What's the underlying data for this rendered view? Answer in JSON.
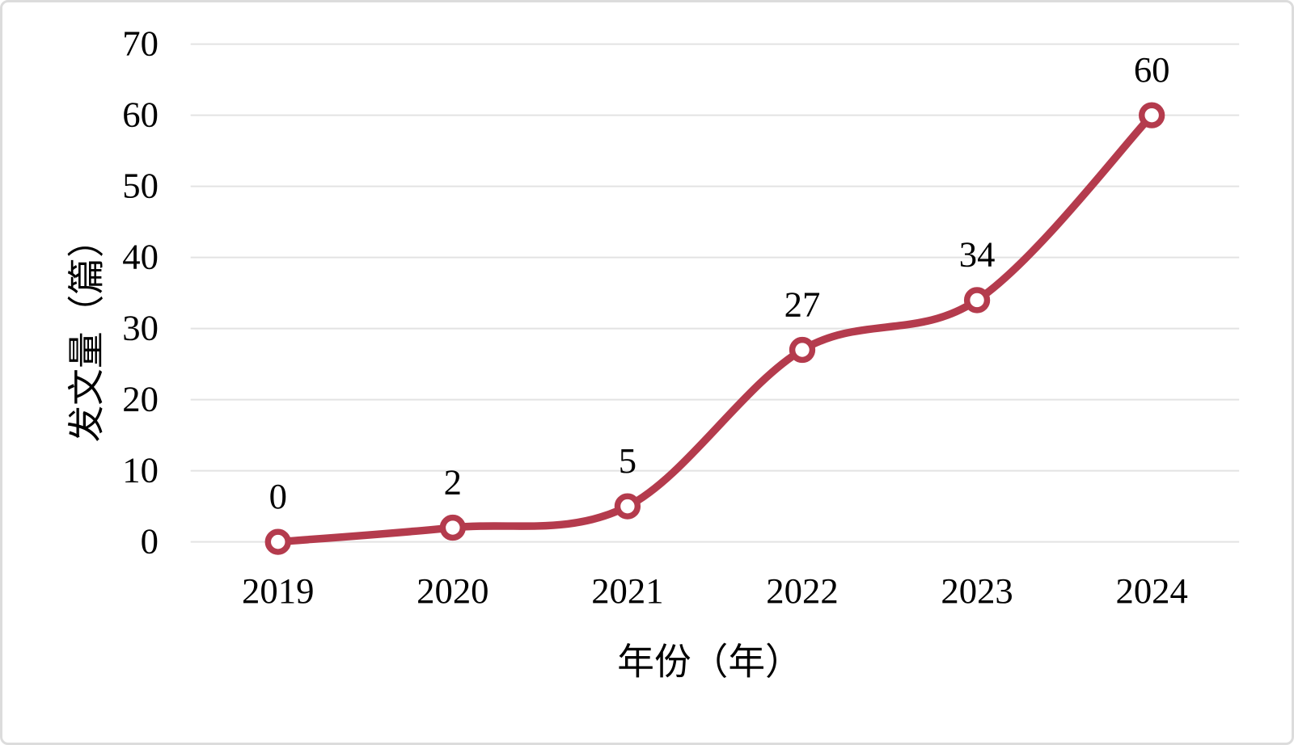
{
  "chart": {
    "background_color": "#FFFFFF",
    "border_color": "#DCDCDC"
  },
  "chart_data": {
    "type": "line",
    "categories": [
      "2019",
      "2020",
      "2021",
      "2022",
      "2023",
      "2024"
    ],
    "values": [
      0,
      2,
      5,
      27,
      34,
      60
    ],
    "data_labels": [
      "0",
      "2",
      "5",
      "27",
      "34",
      "60"
    ],
    "title": "",
    "xlabel": "年份（年）",
    "ylabel": "发文量（篇）",
    "ylim": [
      0,
      70
    ],
    "ytick_step": 10,
    "ytick_labels": [
      "0",
      "10",
      "20",
      "30",
      "40",
      "50",
      "60",
      "70"
    ],
    "grid": true,
    "smooth_line": true,
    "legend": "none",
    "line_color": "#B43B4D",
    "marker_style": "open-circle",
    "marker_fill": "#FFFFFF",
    "gridline_color": "#E3E3E3",
    "text_color": "#000000"
  }
}
